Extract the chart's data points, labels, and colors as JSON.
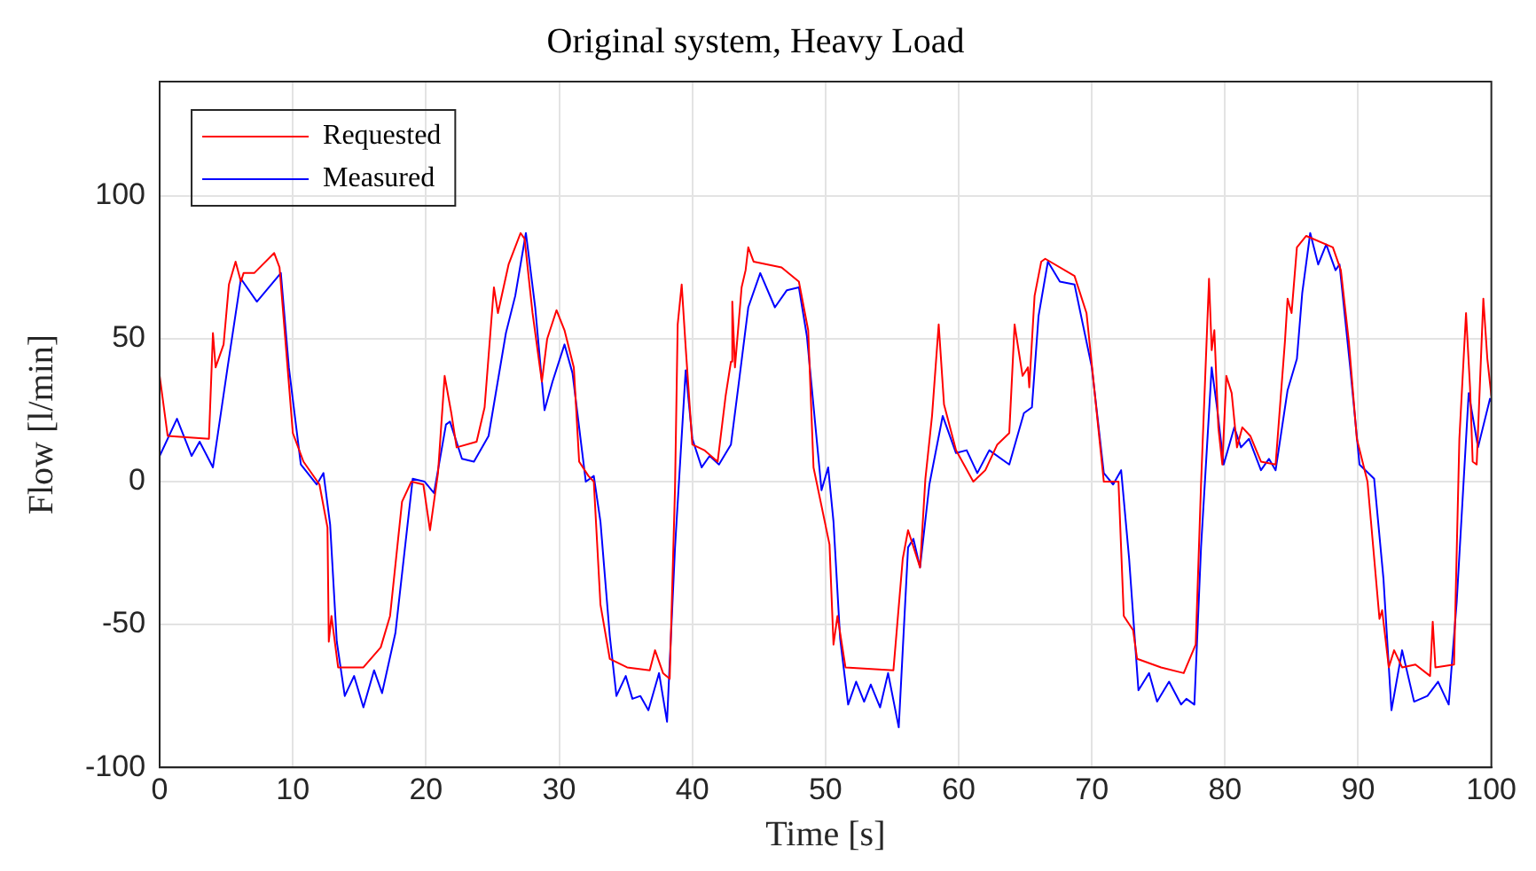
{
  "chart_data": {
    "type": "line",
    "title": "Original system, Heavy Load",
    "xlabel": "Time [s]",
    "ylabel": "Flow [l/min]",
    "xlim": [
      0,
      100
    ],
    "xticks": [
      0,
      10,
      20,
      30,
      40,
      50,
      60,
      70,
      80,
      90,
      100
    ],
    "ylim": [
      -100,
      140
    ],
    "yticks": [
      -100,
      -50,
      0,
      50,
      100
    ],
    "grid": true,
    "legend": "top left",
    "marker": "none",
    "line_style": "solid",
    "series": [
      {
        "name": "Requested",
        "color": "#ff0000",
        "x": [
          0,
          0.6,
          3.7,
          4.0,
          4.2,
          4.8,
          5.2,
          5.7,
          6.1,
          6.3,
          7.1,
          8.6,
          9.0,
          10.0,
          10.8,
          12.0,
          12.6,
          12.7,
          12.9,
          13.4,
          15.3,
          16.6,
          17.3,
          18.2,
          18.9,
          19.8,
          20.3,
          20.9,
          21.4,
          21.9,
          22.3,
          23.8,
          24.4,
          25.1,
          25.4,
          26.2,
          27.1,
          27.4,
          28.0,
          28.7,
          29.1,
          29.8,
          30.4,
          31.1,
          31.5,
          32.2,
          32.6,
          33.1,
          33.8,
          35.1,
          36.8,
          37.2,
          37.8,
          38.3,
          38.7,
          38.9,
          39.2,
          39.5,
          40.0,
          40.9,
          41.9,
          42.5,
          42.9,
          43.0,
          43.2,
          43.7,
          44.0,
          44.2,
          44.6,
          46.7,
          48.0,
          48.7,
          49.1,
          50.3,
          50.6,
          50.9,
          51.5,
          55.1,
          55.8,
          56.2,
          57.1,
          57.5,
          58.0,
          58.5,
          58.9,
          59.8,
          61.1,
          62.0,
          62.9,
          63.8,
          64.2,
          64.8,
          65.2,
          65.3,
          65.7,
          66.2,
          66.5,
          68.7,
          69.6,
          70.9,
          72.0,
          72.4,
          73.1,
          73.4,
          75.2,
          76.9,
          77.8,
          78.2,
          78.8,
          79.0,
          79.2,
          79.5,
          79.8,
          80.1,
          80.5,
          80.9,
          81.3,
          81.9,
          82.7,
          83.8,
          84.5,
          84.7,
          85.0,
          85.4,
          86.1,
          88.1,
          88.7,
          89.3,
          89.9,
          90.7,
          91.6,
          91.8,
          92.3,
          92.7,
          93.3,
          94.3,
          95.4,
          95.6,
          95.8,
          97.2,
          97.6,
          98.1,
          98.4,
          98.6,
          98.9,
          99.4,
          99.7,
          100
        ],
        "values": [
          37,
          16,
          15,
          52,
          40,
          48,
          69,
          77,
          70,
          73,
          73,
          80,
          75,
          17,
          7,
          -1,
          -16,
          -56,
          -47,
          -65,
          -65,
          -58,
          -47,
          -7,
          0,
          -1,
          -17,
          3,
          37,
          24,
          12,
          14,
          26,
          68,
          59,
          76,
          87,
          85,
          59,
          35,
          50,
          60,
          53,
          40,
          7,
          2,
          0,
          -43,
          -62,
          -65,
          -66,
          -59,
          -67,
          -69,
          -2,
          55,
          69,
          47,
          13,
          11,
          7,
          30,
          42,
          63,
          40,
          68,
          74,
          82,
          77,
          75,
          70,
          53,
          5,
          -22,
          -57,
          -47,
          -65,
          -66,
          -27,
          -17,
          -30,
          1,
          23,
          55,
          27,
          11,
          0,
          4,
          13,
          17,
          55,
          37,
          40,
          33,
          65,
          77,
          78,
          72,
          59,
          0,
          0,
          -47,
          -52,
          -62,
          -65,
          -67,
          -57,
          -1,
          71,
          46,
          53,
          19,
          6,
          37,
          31,
          12,
          19,
          16,
          7,
          6,
          49,
          64,
          59,
          82,
          86,
          82,
          74,
          49,
          15,
          0,
          -48,
          -45,
          -65,
          -59,
          -65,
          -64,
          -68,
          -49,
          -65,
          -64,
          15,
          59,
          33,
          7,
          6,
          64,
          43,
          30
        ]
      },
      {
        "name": "Measured",
        "color": "#0000ff",
        "x": [
          0,
          1.3,
          2.4,
          3.0,
          4.0,
          5.1,
          6.1,
          7.3,
          9.1,
          9.7,
          10.6,
          11.8,
          12.3,
          12.8,
          13.3,
          13.9,
          14.6,
          15.3,
          16.1,
          16.7,
          17.7,
          19.0,
          19.9,
          20.6,
          21.5,
          21.8,
          22.7,
          23.6,
          24.7,
          26.0,
          26.7,
          27.5,
          28.2,
          28.9,
          29.5,
          30.4,
          31.0,
          32.0,
          32.6,
          33.1,
          33.8,
          34.3,
          35.0,
          35.5,
          36.1,
          36.7,
          37.5,
          38.1,
          38.7,
          39.5,
          40.0,
          40.7,
          41.3,
          42.0,
          42.9,
          43.5,
          44.2,
          45.1,
          46.2,
          47.1,
          48.0,
          48.6,
          49.7,
          50.2,
          50.6,
          51.1,
          51.7,
          52.3,
          52.9,
          53.4,
          54.1,
          54.7,
          55.5,
          56.2,
          56.6,
          57.1,
          57.8,
          58.8,
          59.8,
          60.6,
          61.4,
          62.3,
          63.8,
          64.9,
          65.5,
          66.0,
          66.7,
          67.6,
          68.7,
          70.0,
          70.9,
          71.6,
          72.2,
          72.8,
          73.5,
          74.3,
          74.9,
          75.8,
          76.7,
          77.1,
          77.7,
          78.2,
          79.0,
          79.4,
          79.9,
          80.7,
          81.2,
          81.8,
          82.7,
          83.3,
          83.8,
          84.7,
          85.4,
          85.8,
          86.4,
          87.0,
          87.6,
          88.3,
          88.6,
          89.4,
          90.1,
          91.2,
          91.9,
          92.5,
          93.3,
          94.2,
          95.2,
          96.0,
          96.8,
          97.4,
          98.3,
          99.0,
          99.9,
          100
        ],
        "values": [
          9,
          22,
          9,
          14,
          5,
          40,
          71,
          63,
          73,
          40,
          6,
          -1,
          3,
          -15,
          -56,
          -75,
          -68,
          -79,
          -66,
          -74,
          -53,
          1,
          0,
          -4,
          20,
          21,
          8,
          7,
          16,
          52,
          65,
          87,
          61,
          25,
          35,
          48,
          38,
          0,
          2,
          -14,
          -54,
          -75,
          -68,
          -76,
          -75,
          -80,
          -67,
          -84,
          -23,
          39,
          15,
          5,
          9,
          6,
          13,
          35,
          61,
          73,
          61,
          67,
          68,
          51,
          -3,
          5,
          -14,
          -55,
          -78,
          -70,
          -77,
          -71,
          -79,
          -67,
          -86,
          -23,
          -20,
          -30,
          -1,
          23,
          10,
          11,
          3,
          11,
          6,
          24,
          26,
          58,
          77,
          70,
          69,
          40,
          3,
          -1,
          4,
          -27,
          -73,
          -67,
          -77,
          -70,
          -78,
          -76,
          -78,
          -23,
          40,
          26,
          6,
          19,
          12,
          15,
          4,
          8,
          4,
          32,
          43,
          66,
          87,
          76,
          83,
          74,
          76,
          40,
          6,
          1,
          -34,
          -80,
          -59,
          -77,
          -75,
          -70,
          -78,
          -42,
          31,
          12,
          29,
          28
        ]
      }
    ]
  }
}
